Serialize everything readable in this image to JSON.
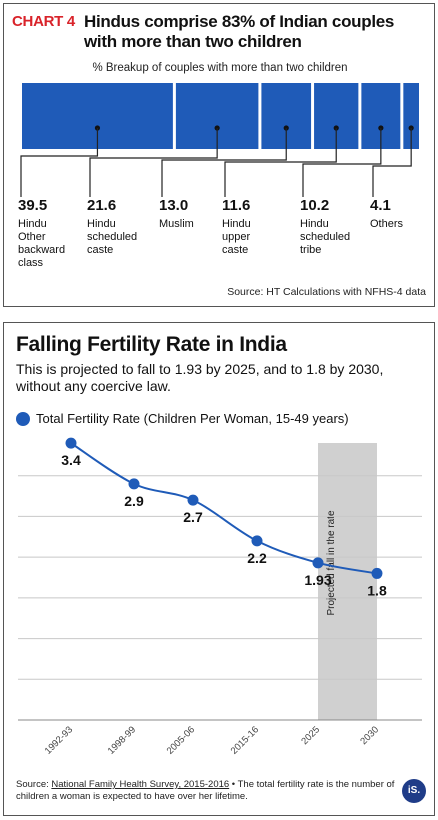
{
  "chart1": {
    "label": "CHART 4",
    "title": "Hindus comprise 83% of Indian couples with more than two children",
    "subtitle": "% Breakup of couples with more than two children",
    "source": "Source: HT Calculations with NFHS-4 data",
    "bar_color": "#1f5bb8",
    "chart_data": {
      "type": "bar",
      "categories": [
        "Hindu Other backward class",
        "Hindu scheduled caste",
        "Muslim",
        "Hindu upper caste",
        "Hindu scheduled tribe",
        "Others"
      ],
      "category_lines": [
        [
          "Hindu",
          "Other",
          "backward",
          "class"
        ],
        [
          "Hindu",
          "scheduled",
          "caste"
        ],
        [
          "Muslim"
        ],
        [
          "Hindu",
          "upper",
          "caste"
        ],
        [
          "Hindu",
          "scheduled",
          "tribe"
        ],
        [
          "Others"
        ]
      ],
      "values": [
        39.5,
        21.6,
        13.0,
        11.6,
        10.2,
        4.1
      ],
      "labels": [
        "39.5",
        "21.6",
        "13.0",
        "11.6",
        "10.2",
        "4.1"
      ],
      "title": "Hindus comprise 83% of Indian couples with more than two children"
    }
  },
  "chart2": {
    "title": "Falling Fertility Rate in India",
    "subtitle": "This is projected to fall to 1.93 by 2025, and to 1.8 by 2030, without any coercive law.",
    "legend": "Total Fertility Rate (Children Per Woman, 15-49 years)",
    "projection_label": "Projected fall in the rate",
    "footnote_source": "National Family Health Survey, 2015-2016",
    "footnote_prefix": "Source: ",
    "footnote_text": " • The total fertility rate is the number of children a woman is expected to have over her lifetime.",
    "logo": "iS.",
    "line_color": "#1f5bb8",
    "chart_data": {
      "type": "line",
      "x": [
        "1992-93",
        "1998-99",
        "2005-06",
        "2015-16",
        "2025",
        "2030"
      ],
      "series": [
        {
          "name": "Total Fertility Rate (Children Per Woman, 15-49 years)",
          "values": [
            3.4,
            2.9,
            2.7,
            2.2,
            1.93,
            1.8
          ]
        }
      ],
      "labels": [
        "3.4",
        "2.9",
        "2.7",
        "2.2",
        "1.93",
        "1.8"
      ],
      "ylim": [
        0,
        3.5
      ],
      "grid": true,
      "projected_from": "2025"
    }
  }
}
